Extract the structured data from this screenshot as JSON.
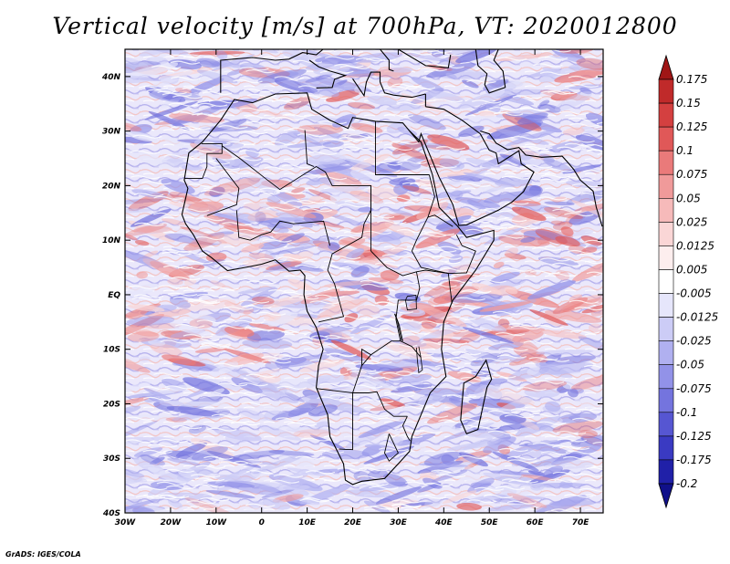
{
  "title": "Vertical velocity [m/s] at 700hPa, VT: 2020012800",
  "credit": "GrADS: IGES/COLA",
  "map": {
    "lon_range": [
      -30,
      75
    ],
    "lat_range": [
      -40,
      45
    ],
    "lon_ticks": [
      "30W",
      "20W",
      "10W",
      "0",
      "10E",
      "20E",
      "30E",
      "40E",
      "50E",
      "60E",
      "70E"
    ],
    "lat_ticks": [
      "40N",
      "30N",
      "20N",
      "10N",
      "EQ",
      "10S",
      "20S",
      "30S",
      "40S"
    ],
    "field": "vertical velocity",
    "units": "m/s",
    "level": "700hPa"
  },
  "colorbar": {
    "labels": [
      "0.175",
      "0.15",
      "0.125",
      "0.1",
      "0.075",
      "0.05",
      "0.025",
      "0.0125",
      "0.005",
      "-0.005",
      "-0.0125",
      "-0.025",
      "-0.05",
      "-0.075",
      "-0.1",
      "-0.125",
      "-0.175",
      "-0.2"
    ],
    "colors": [
      "#a01616",
      "#c02a2a",
      "#d44040",
      "#e05858",
      "#ea7a7a",
      "#f09a9a",
      "#f6baba",
      "#fad6d6",
      "#fdeeee",
      "#ffffff",
      "#e6e6fb",
      "#ccccf6",
      "#b0b0f0",
      "#9292e8",
      "#7474de",
      "#5656d2",
      "#3a3ac2",
      "#2020a8",
      "#10108a"
    ]
  }
}
